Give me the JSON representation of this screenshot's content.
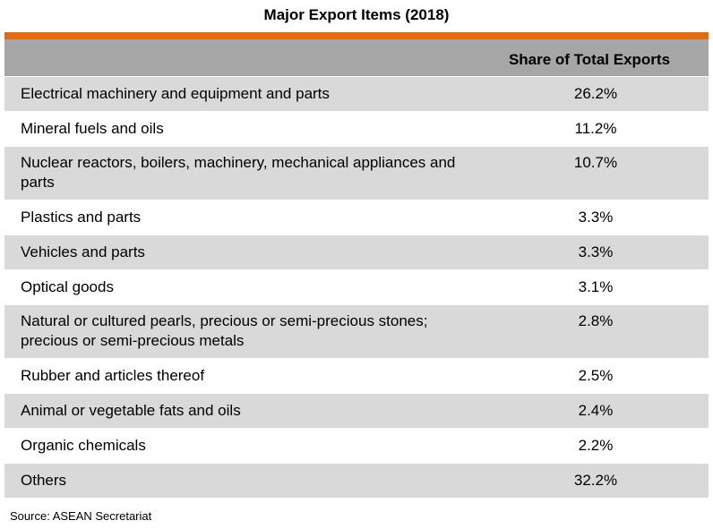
{
  "title": "Major Export Items (2018)",
  "accent_color": "#E36C0A",
  "header": {
    "share_label": "Share of Total Exports"
  },
  "rows": [
    {
      "item": "Electrical machinery and equipment and parts",
      "share": "26.2%"
    },
    {
      "item": "Mineral fuels and oils",
      "share": "11.2%"
    },
    {
      "item": "Nuclear reactors, boilers, machinery, mechanical appliances and parts",
      "share": "10.7%"
    },
    {
      "item": "Plastics and parts",
      "share": "3.3%"
    },
    {
      "item": "Vehicles and parts",
      "share": "3.3%"
    },
    {
      "item": "Optical goods",
      "share": "3.1%"
    },
    {
      "item": "Natural or cultured pearls, precious or semi-precious stones; precious or semi-precious metals",
      "share": "2.8%"
    },
    {
      "item": "Rubber and articles thereof",
      "share": "2.5%"
    },
    {
      "item": "Animal or vegetable fats and oils",
      "share": "2.4%"
    },
    {
      "item": "Organic chemicals",
      "share": "2.2%"
    },
    {
      "item": "Others",
      "share": "32.2%"
    }
  ],
  "source": "Source: ASEAN Secretariat"
}
